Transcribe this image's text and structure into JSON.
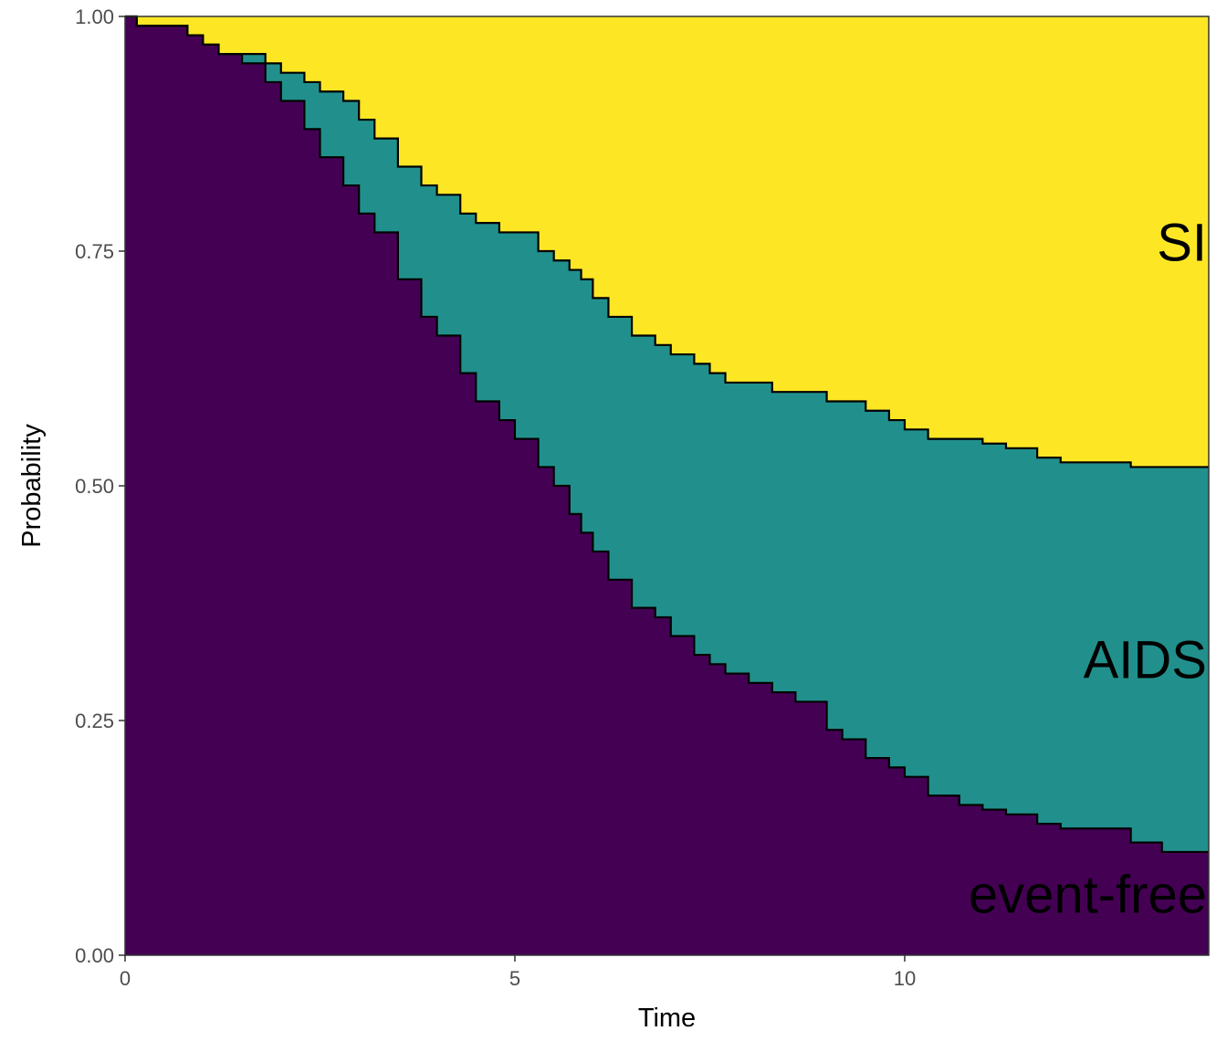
{
  "chart_data": {
    "type": "area",
    "stacked": true,
    "step": true,
    "xlabel": "Time",
    "ylabel": "Probability",
    "xlim": [
      0,
      13.9
    ],
    "ylim": [
      0,
      1
    ],
    "x_ticks": [
      0,
      5,
      10
    ],
    "x_tick_labels": [
      "0",
      "5",
      "10"
    ],
    "y_ticks": [
      0,
      0.25,
      0.5,
      0.75,
      1
    ],
    "y_tick_labels": [
      "0.00",
      "0.25",
      "0.50",
      "0.75",
      "1.00"
    ],
    "grid": false,
    "legend": "none",
    "x": [
      0,
      0.15,
      0.5,
      0.8,
      1.0,
      1.2,
      1.5,
      1.8,
      2.0,
      2.3,
      2.5,
      2.8,
      3.0,
      3.2,
      3.5,
      3.8,
      4.0,
      4.3,
      4.5,
      4.8,
      5.0,
      5.3,
      5.5,
      5.7,
      5.85,
      6.0,
      6.2,
      6.5,
      6.8,
      7.0,
      7.3,
      7.5,
      7.7,
      8.0,
      8.3,
      8.6,
      9.0,
      9.2,
      9.5,
      9.8,
      10.0,
      10.3,
      10.7,
      11.0,
      11.3,
      11.7,
      12.0,
      12.5,
      12.9,
      13.3,
      13.9
    ],
    "series": [
      {
        "name": "event-free",
        "color": "#440154",
        "values": [
          1.0,
          0.99,
          0.99,
          0.98,
          0.97,
          0.96,
          0.95,
          0.93,
          0.91,
          0.88,
          0.85,
          0.82,
          0.79,
          0.77,
          0.72,
          0.68,
          0.66,
          0.62,
          0.59,
          0.57,
          0.55,
          0.52,
          0.5,
          0.47,
          0.45,
          0.43,
          0.4,
          0.37,
          0.36,
          0.34,
          0.32,
          0.31,
          0.3,
          0.29,
          0.28,
          0.27,
          0.24,
          0.23,
          0.21,
          0.2,
          0.19,
          0.17,
          0.16,
          0.155,
          0.15,
          0.14,
          0.135,
          0.135,
          0.12,
          0.11,
          0.11
        ]
      },
      {
        "name": "AIDS",
        "color": "#21908c",
        "values": [
          0.0,
          0.0,
          0.0,
          0.0,
          0.0,
          0.0,
          0.01,
          0.02,
          0.03,
          0.05,
          0.07,
          0.09,
          0.1,
          0.1,
          0.12,
          0.14,
          0.15,
          0.17,
          0.19,
          0.2,
          0.22,
          0.23,
          0.24,
          0.26,
          0.27,
          0.27,
          0.28,
          0.29,
          0.29,
          0.3,
          0.31,
          0.31,
          0.31,
          0.32,
          0.32,
          0.33,
          0.35,
          0.36,
          0.37,
          0.37,
          0.37,
          0.38,
          0.39,
          0.39,
          0.39,
          0.39,
          0.39,
          0.39,
          0.4,
          0.41,
          0.41
        ]
      },
      {
        "name": "SI",
        "color": "#fde725",
        "values": [
          0.0,
          0.01,
          0.01,
          0.02,
          0.03,
          0.04,
          0.04,
          0.05,
          0.06,
          0.07,
          0.08,
          0.09,
          0.11,
          0.13,
          0.16,
          0.18,
          0.19,
          0.21,
          0.22,
          0.23,
          0.23,
          0.25,
          0.26,
          0.27,
          0.28,
          0.3,
          0.32,
          0.34,
          0.35,
          0.36,
          0.37,
          0.38,
          0.39,
          0.39,
          0.4,
          0.4,
          0.41,
          0.41,
          0.42,
          0.43,
          0.44,
          0.45,
          0.45,
          0.455,
          0.46,
          0.47,
          0.475,
          0.475,
          0.48,
          0.48,
          0.48
        ]
      }
    ],
    "area_labels": [
      "SI",
      "AIDS",
      "event-free"
    ]
  }
}
